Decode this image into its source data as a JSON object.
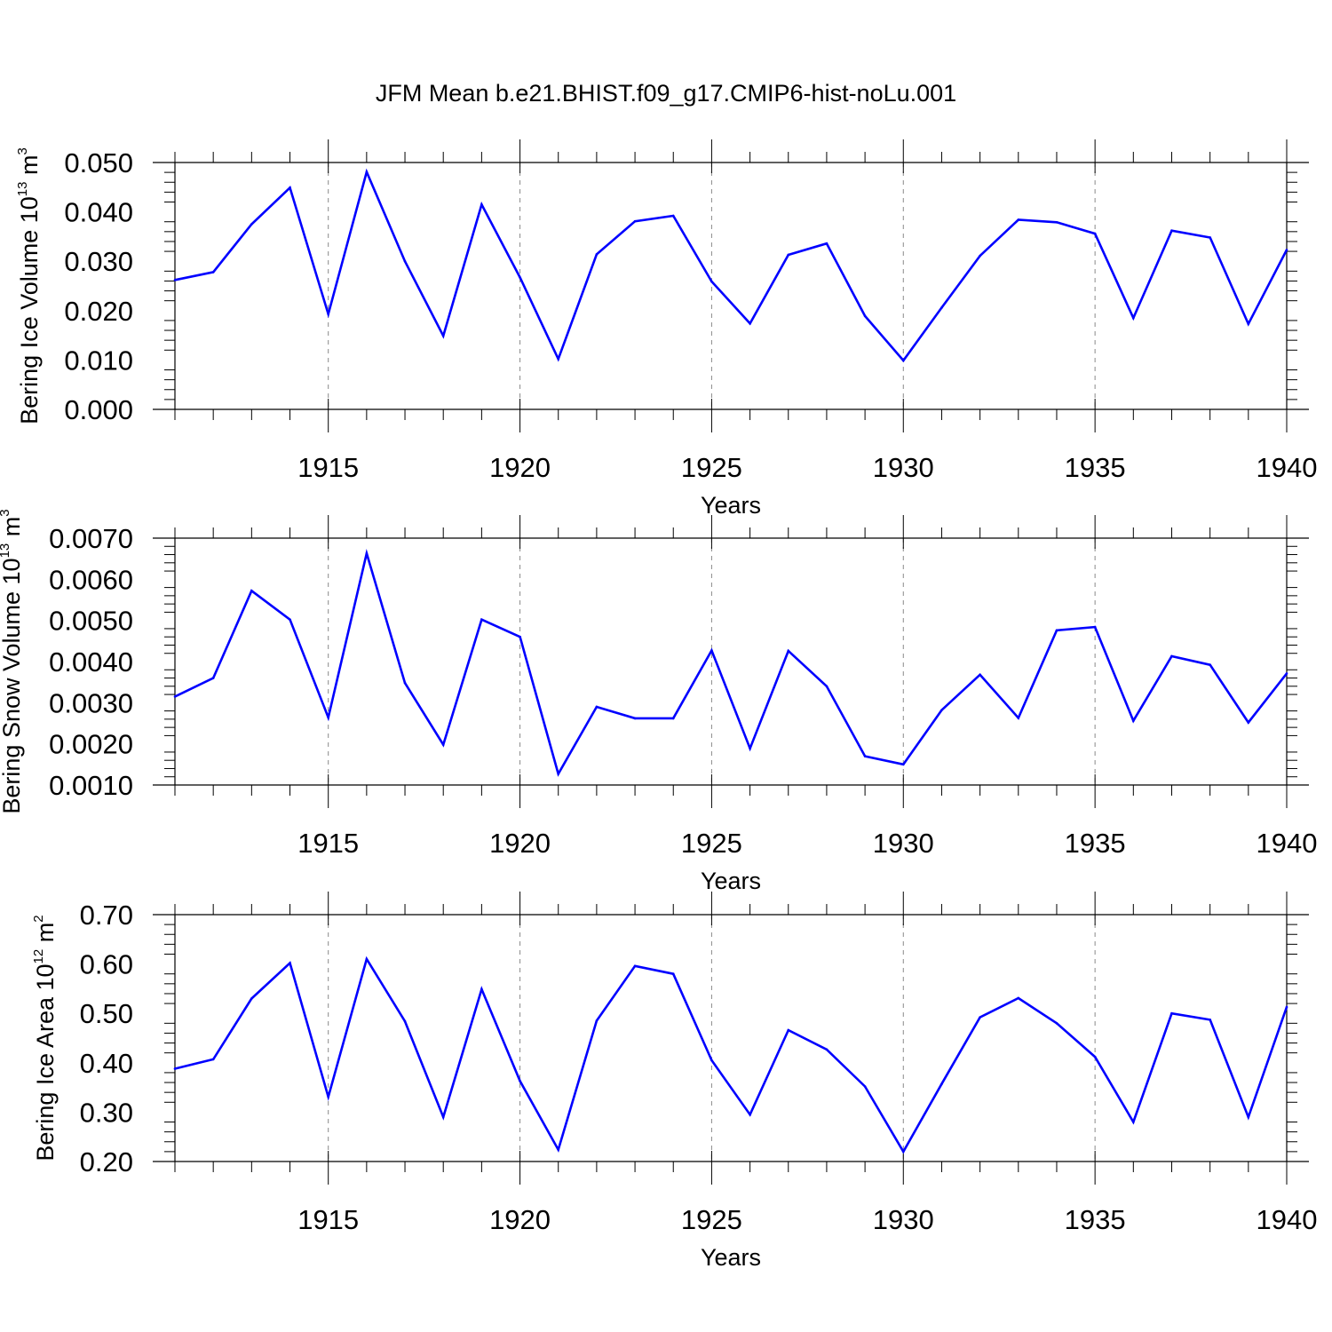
{
  "page": {
    "title": "JFM Mean b.e21.BHIST.f09_g17.CMIP6-hist-noLu.001"
  },
  "style": {
    "line_color": "#0000ff",
    "axis_color": "#000000",
    "grid_color": "#8a8a8a"
  },
  "chart_data": [
    {
      "type": "line",
      "id": "ice-volume",
      "ylabel": {
        "main": "Bering Ice Volume 10",
        "sup1": "13",
        "mid": " m",
        "sup2": "3"
      },
      "xlabel": "Years",
      "xlim": [
        1911,
        1940
      ],
      "ylim": [
        0.0,
        0.05
      ],
      "yticks": [
        0.0,
        0.01,
        0.02,
        0.03,
        0.04,
        0.05
      ],
      "ytick_labels": [
        "0.000",
        "0.010",
        "0.020",
        "0.030",
        "0.040",
        "0.050"
      ],
      "xticks": [
        1915,
        1920,
        1925,
        1930,
        1935,
        1940
      ],
      "xtick_labels": [
        "1915",
        "1920",
        "1925",
        "1930",
        "1935",
        "1940"
      ],
      "x": [
        1911,
        1912,
        1913,
        1914,
        1915,
        1916,
        1917,
        1918,
        1919,
        1920,
        1921,
        1922,
        1923,
        1924,
        1925,
        1926,
        1927,
        1928,
        1929,
        1930,
        1931,
        1932,
        1933,
        1934,
        1935,
        1936,
        1937,
        1938,
        1939,
        1940
      ],
      "values": [
        0.0262,
        0.0278,
        0.0375,
        0.0449,
        0.0193,
        0.0481,
        0.03,
        0.0149,
        0.0415,
        0.0267,
        0.0102,
        0.0314,
        0.0381,
        0.0392,
        0.0259,
        0.0174,
        0.0313,
        0.0336,
        0.0189,
        0.0099,
        0.0206,
        0.0311,
        0.0384,
        0.0379,
        0.0356,
        0.0185,
        0.0362,
        0.0348,
        0.0173,
        0.0323
      ]
    },
    {
      "type": "line",
      "id": "snow-volume",
      "ylabel": {
        "main": "Bering Snow Volume 10",
        "sup1": "13",
        "mid": " m",
        "sup2": "3"
      },
      "xlabel": "Years",
      "xlim": [
        1911,
        1940
      ],
      "ylim": [
        0.001,
        0.007
      ],
      "yticks": [
        0.001,
        0.002,
        0.003,
        0.004,
        0.005,
        0.006,
        0.007
      ],
      "ytick_labels": [
        "0.0010",
        "0.0020",
        "0.0030",
        "0.0040",
        "0.0050",
        "0.0060",
        "0.0070"
      ],
      "xticks": [
        1915,
        1920,
        1925,
        1930,
        1935,
        1940
      ],
      "xtick_labels": [
        "1915",
        "1920",
        "1925",
        "1930",
        "1935",
        "1940"
      ],
      "x": [
        1911,
        1912,
        1913,
        1914,
        1915,
        1916,
        1917,
        1918,
        1919,
        1920,
        1921,
        1922,
        1923,
        1924,
        1925,
        1926,
        1927,
        1928,
        1929,
        1930,
        1931,
        1932,
        1933,
        1934,
        1935,
        1936,
        1937,
        1938,
        1939,
        1940
      ],
      "values": [
        0.00315,
        0.0036,
        0.00572,
        0.00502,
        0.00264,
        0.00663,
        0.00348,
        0.00198,
        0.00502,
        0.0046,
        0.00127,
        0.0029,
        0.00262,
        0.00262,
        0.00427,
        0.00189,
        0.00426,
        0.0034,
        0.0017,
        0.0015,
        0.00282,
        0.00368,
        0.00263,
        0.00476,
        0.00484,
        0.00256,
        0.00413,
        0.00392,
        0.00252,
        0.00371
      ]
    },
    {
      "type": "line",
      "id": "ice-area",
      "ylabel": {
        "main": "Bering Ice Area 10",
        "sup1": "12",
        "mid": " m",
        "sup2": "2"
      },
      "xlabel": "Years",
      "xlim": [
        1911,
        1940
      ],
      "ylim": [
        0.2,
        0.7
      ],
      "yticks": [
        0.2,
        0.3,
        0.4,
        0.5,
        0.6,
        0.7
      ],
      "ytick_labels": [
        "0.20",
        "0.30",
        "0.40",
        "0.50",
        "0.60",
        "0.70"
      ],
      "xticks": [
        1915,
        1920,
        1925,
        1930,
        1935,
        1940
      ],
      "xtick_labels": [
        "1915",
        "1920",
        "1925",
        "1930",
        "1935",
        "1940"
      ],
      "x": [
        1911,
        1912,
        1913,
        1914,
        1915,
        1916,
        1917,
        1918,
        1919,
        1920,
        1921,
        1922,
        1923,
        1924,
        1925,
        1926,
        1927,
        1928,
        1929,
        1930,
        1931,
        1932,
        1933,
        1934,
        1935,
        1936,
        1937,
        1938,
        1939,
        1940
      ],
      "values": [
        0.388,
        0.407,
        0.53,
        0.602,
        0.331,
        0.61,
        0.484,
        0.29,
        0.549,
        0.363,
        0.224,
        0.485,
        0.596,
        0.58,
        0.405,
        0.295,
        0.466,
        0.427,
        0.352,
        0.22,
        0.357,
        0.492,
        0.531,
        0.48,
        0.412,
        0.28,
        0.5,
        0.487,
        0.29,
        0.513
      ]
    }
  ]
}
